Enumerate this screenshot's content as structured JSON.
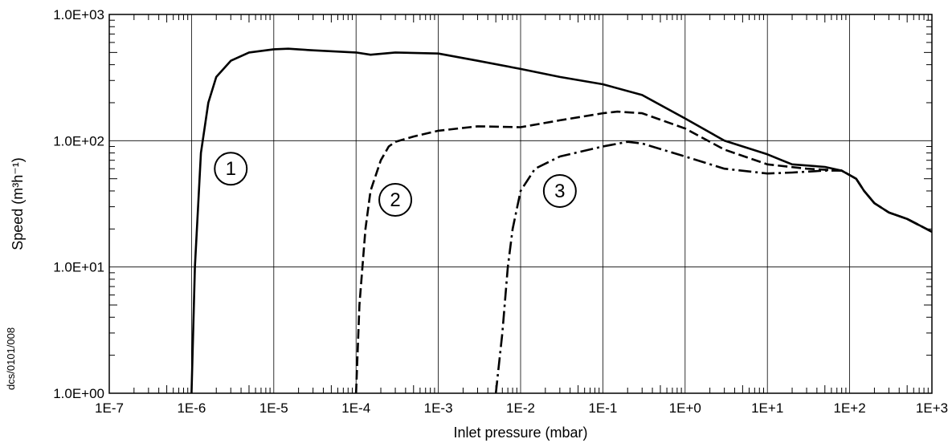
{
  "chart_data": {
    "type": "line",
    "title": "",
    "xlabel": "Inlet pressure (mbar)",
    "ylabel": "Speed (m³h⁻¹)",
    "x_scale": "log",
    "y_scale": "log",
    "xlim": [
      1e-07,
      1000
    ],
    "ylim": [
      1,
      1000
    ],
    "grid": true,
    "x_tick_labels": [
      "1E-7",
      "1E-6",
      "1E-5",
      "1E-4",
      "1E-3",
      "1E-2",
      "1E-1",
      "1E+0",
      "1E+1",
      "1E+2",
      "1E+3"
    ],
    "y_tick_labels": [
      "1.0E+00",
      "1.0E+01",
      "1.0E+02",
      "1.0E+03"
    ],
    "side_note": "dcs/0101/008",
    "series": [
      {
        "label": "1",
        "line_style": "solid",
        "points": [
          [
            1e-06,
            1.0
          ],
          [
            1.1e-06,
            10
          ],
          [
            1.3e-06,
            80
          ],
          [
            1.6e-06,
            200
          ],
          [
            2e-06,
            320
          ],
          [
            3e-06,
            430
          ],
          [
            5e-06,
            500
          ],
          [
            1e-05,
            530
          ],
          [
            1.5e-05,
            535
          ],
          [
            3e-05,
            520
          ],
          [
            0.0001,
            500
          ],
          [
            0.00015,
            480
          ],
          [
            0.0003,
            500
          ],
          [
            0.001,
            490
          ],
          [
            0.003,
            430
          ],
          [
            0.01,
            370
          ],
          [
            0.03,
            320
          ],
          [
            0.1,
            280
          ],
          [
            0.3,
            230
          ],
          [
            1,
            150
          ],
          [
            3,
            100
          ],
          [
            10.0,
            78
          ],
          [
            15.0,
            70
          ],
          [
            20.0,
            65
          ],
          [
            50.0,
            62
          ],
          [
            80.0,
            58
          ],
          [
            120.0,
            50
          ],
          [
            150.0,
            40
          ],
          [
            200.0,
            32
          ],
          [
            300.0,
            27
          ],
          [
            500.0,
            24
          ],
          [
            1000.0,
            19
          ]
        ]
      },
      {
        "label": "2",
        "line_style": "dashed",
        "points": [
          [
            0.0001,
            1.0
          ],
          [
            0.00011,
            5
          ],
          [
            0.00013,
            20
          ],
          [
            0.00015,
            40
          ],
          [
            0.0002,
            70
          ],
          [
            0.00025,
            90
          ],
          [
            0.0003,
            98
          ],
          [
            0.0005,
            108
          ],
          [
            0.001,
            120
          ],
          [
            0.003,
            130
          ],
          [
            0.01,
            128
          ],
          [
            0.03,
            145
          ],
          [
            0.1,
            165
          ],
          [
            0.15,
            170
          ],
          [
            0.3,
            165
          ],
          [
            1,
            125
          ],
          [
            3,
            85
          ],
          [
            10.0,
            65
          ],
          [
            30.0,
            60
          ],
          [
            80.0,
            58
          ],
          [
            120.0,
            50
          ],
          [
            150.0,
            40
          ],
          [
            200.0,
            32
          ],
          [
            300.0,
            27
          ],
          [
            500.0,
            24
          ],
          [
            1000.0,
            19
          ]
        ]
      },
      {
        "label": "3",
        "line_style": "dash-dot",
        "points": [
          [
            0.005,
            1.0
          ],
          [
            0.006,
            3
          ],
          [
            0.007,
            10
          ],
          [
            0.008,
            20
          ],
          [
            0.01,
            40
          ],
          [
            0.015,
            60
          ],
          [
            0.03,
            75
          ],
          [
            0.1,
            90
          ],
          [
            0.2,
            98
          ],
          [
            0.3,
            95
          ],
          [
            1,
            75
          ],
          [
            3,
            60
          ],
          [
            10.0,
            55
          ],
          [
            20.0,
            56
          ],
          [
            50.0,
            58
          ],
          [
            80.0,
            58
          ],
          [
            120.0,
            50
          ],
          [
            150.0,
            40
          ],
          [
            200.0,
            32
          ],
          [
            300.0,
            27
          ],
          [
            500.0,
            24
          ],
          [
            1000.0,
            19
          ]
        ]
      }
    ]
  }
}
